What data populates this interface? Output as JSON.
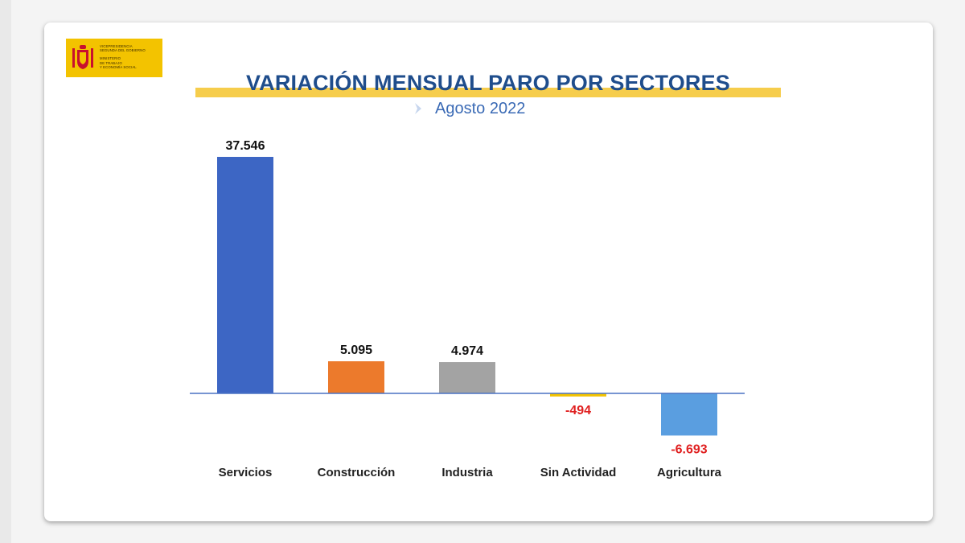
{
  "logo": {
    "lines_top": [
      "Vicepresidencia",
      "Segunda del Gobierno"
    ],
    "lines_bottom": [
      "Ministerio",
      "de Trabajo",
      "y Economía Social"
    ]
  },
  "colors": {
    "title": "#1f4d8c",
    "subtitle": "#3a6ab5",
    "title_band": "#f6cd4c",
    "axis": "#4a72c4",
    "positive_label": "#111111",
    "negative_label": "#e02020"
  },
  "chart_data": {
    "type": "bar",
    "title": "VARIACIÓN MENSUAL PARO POR SECTORES",
    "subtitle": "Agosto 2022",
    "categories": [
      "Servicios",
      "Construcción",
      "Industria",
      "Sin Actividad",
      "Agricultura"
    ],
    "values": [
      37546,
      5095,
      4974,
      -494,
      -6693
    ],
    "value_labels": [
      "37.546",
      "5.095",
      "4.974",
      "-494",
      "-6.693"
    ],
    "bar_colors": [
      "#3d66c4",
      "#ec7a2c",
      "#a3a3a3",
      "#f3c300",
      "#5a9ee0"
    ],
    "ylim": [
      -7500,
      38000
    ],
    "grid": false,
    "legend": "none"
  }
}
